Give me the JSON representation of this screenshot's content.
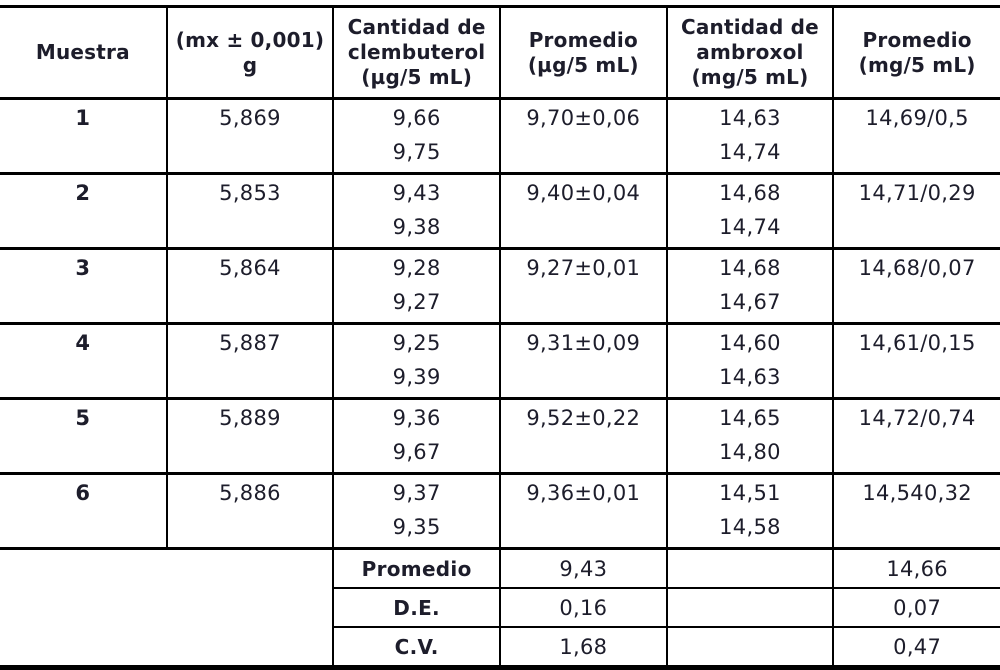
{
  "table": {
    "headers": [
      "Muestra",
      "(mx ± 0,001) g",
      "Cantidad de\nclembuterol\n(µg/5 mL)",
      "Promedio\n(µg/5 mL)",
      "Cantidad de\nambroxol\n(mg/5 mL)",
      "Promedio\n(mg/5 mL)"
    ],
    "rows": [
      {
        "muestra": "1",
        "mx": "5,869",
        "clem": [
          "9,66",
          "9,75"
        ],
        "prom_ug": "9,70±0,06",
        "amb": [
          "14,63",
          "14,74"
        ],
        "prom_mg": "14,69/0,5"
      },
      {
        "muestra": "2",
        "mx": "5,853",
        "clem": [
          "9,43",
          "9,38"
        ],
        "prom_ug": "9,40±0,04",
        "amb": [
          "14,68",
          "14,74"
        ],
        "prom_mg": "14,71/0,29"
      },
      {
        "muestra": "3",
        "mx": "5,864",
        "clem": [
          "9,28",
          "9,27"
        ],
        "prom_ug": "9,27±0,01",
        "amb": [
          "14,68",
          "14,67"
        ],
        "prom_mg": "14,68/0,07"
      },
      {
        "muestra": "4",
        "mx": "5,887",
        "clem": [
          "9,25",
          "9,39"
        ],
        "prom_ug": "9,31±0,09",
        "amb": [
          "14,60",
          "14,63"
        ],
        "prom_mg": "14,61/0,15"
      },
      {
        "muestra": "5",
        "mx": "5,889",
        "clem": [
          "9,36",
          "9,67"
        ],
        "prom_ug": "9,52±0,22",
        "amb": [
          "14,65",
          "14,80"
        ],
        "prom_mg": "14,72/0,74"
      },
      {
        "muestra": "6",
        "mx": "5,886",
        "clem": [
          "9,37",
          "9,35"
        ],
        "prom_ug": "9,36±0,01",
        "amb": [
          "14,51",
          "14,58"
        ],
        "prom_mg": "14,540,32"
      }
    ],
    "summary": [
      {
        "label": "Promedio",
        "clem": "9,43",
        "amb": "14,66"
      },
      {
        "label": "D.E.",
        "clem": "0,16",
        "amb": "0,07"
      },
      {
        "label": "C.V.",
        "clem": "1,68",
        "amb": "0,47"
      }
    ]
  },
  "colors": {
    "text": "#1d1d2b",
    "line": "#000000",
    "background": "#ffffff"
  }
}
